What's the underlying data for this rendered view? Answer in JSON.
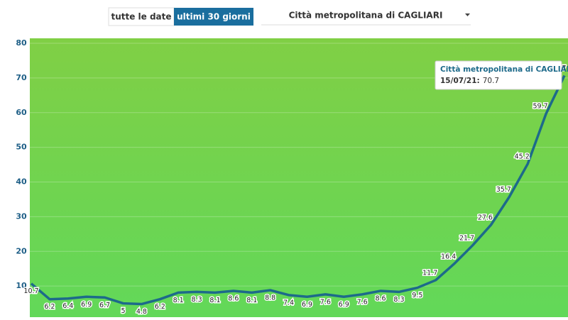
{
  "controls": {
    "buttons": [
      "tutte le date",
      "ultimi 30 giorni"
    ],
    "active_button": 1,
    "dropdown": "Città metropolitana di CAGLIARI"
  },
  "chart_data": {
    "type": "line",
    "categories": [
      null,
      null,
      null,
      null,
      null,
      null,
      null,
      null,
      null,
      null,
      null,
      null,
      null,
      null,
      null,
      null,
      null,
      null,
      null,
      null,
      null,
      null,
      null,
      null,
      null,
      null,
      null,
      null,
      null,
      "15/07/21"
    ],
    "series": [
      {
        "name": "Città metropolitana di CAGLIARI",
        "color": "#1d6a8a",
        "values": [
          10.7,
          6.2,
          6.4,
          6.9,
          6.7,
          5,
          4.8,
          6.2,
          8.1,
          8.3,
          8.1,
          8.6,
          8.1,
          8.8,
          7.4,
          6.9,
          7.6,
          6.9,
          7.6,
          8.6,
          8.3,
          9.5,
          11.7,
          16.4,
          21.7,
          27.6,
          35.7,
          45.2,
          59.7,
          70.7
        ]
      }
    ],
    "ylim": [
      0,
      80
    ],
    "yticks": [
      10,
      20,
      30,
      40,
      50,
      60,
      70,
      80
    ],
    "grid": true,
    "tooltip": {
      "label": "15/07/21:",
      "index": 29
    }
  }
}
